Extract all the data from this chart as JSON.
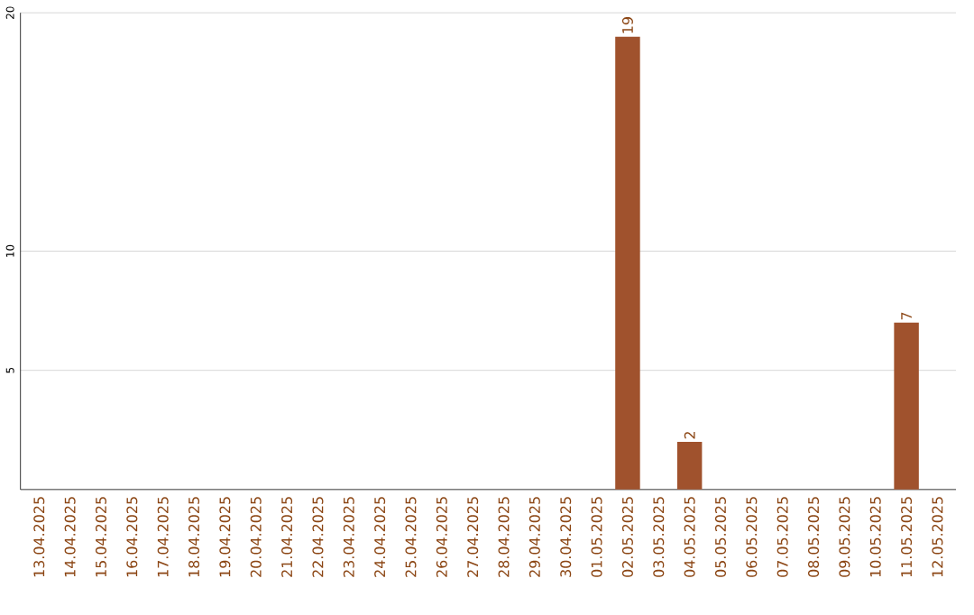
{
  "chart_data": {
    "type": "bar",
    "categories": [
      "13.04.2025",
      "14.04.2025",
      "15.04.2025",
      "16.04.2025",
      "17.04.2025",
      "18.04.2025",
      "19.04.2025",
      "20.04.2025",
      "21.04.2025",
      "22.04.2025",
      "23.04.2025",
      "24.04.2025",
      "25.04.2025",
      "26.04.2025",
      "27.04.2025",
      "28.04.2025",
      "29.04.2025",
      "30.04.2025",
      "01.05.2025",
      "02.05.2025",
      "03.05.2025",
      "04.05.2025",
      "05.05.2025",
      "06.05.2025",
      "07.05.2025",
      "08.05.2025",
      "09.05.2025",
      "10.05.2025",
      "11.05.2025",
      "12.05.2025"
    ],
    "values": [
      0,
      0,
      0,
      0,
      0,
      0,
      0,
      0,
      0,
      0,
      0,
      0,
      0,
      0,
      0,
      0,
      0,
      0,
      0,
      19,
      0,
      2,
      0,
      0,
      0,
      0,
      0,
      0,
      7,
      0
    ],
    "value_labels": [
      null,
      null,
      null,
      null,
      null,
      null,
      null,
      null,
      null,
      null,
      null,
      null,
      null,
      null,
      null,
      null,
      null,
      null,
      null,
      "19",
      null,
      "2",
      null,
      null,
      null,
      null,
      null,
      null,
      "7",
      null
    ],
    "color": "#a0522d",
    "ylim": [
      0,
      20
    ],
    "yticks": [
      5,
      10,
      20
    ],
    "grid": "y"
  }
}
